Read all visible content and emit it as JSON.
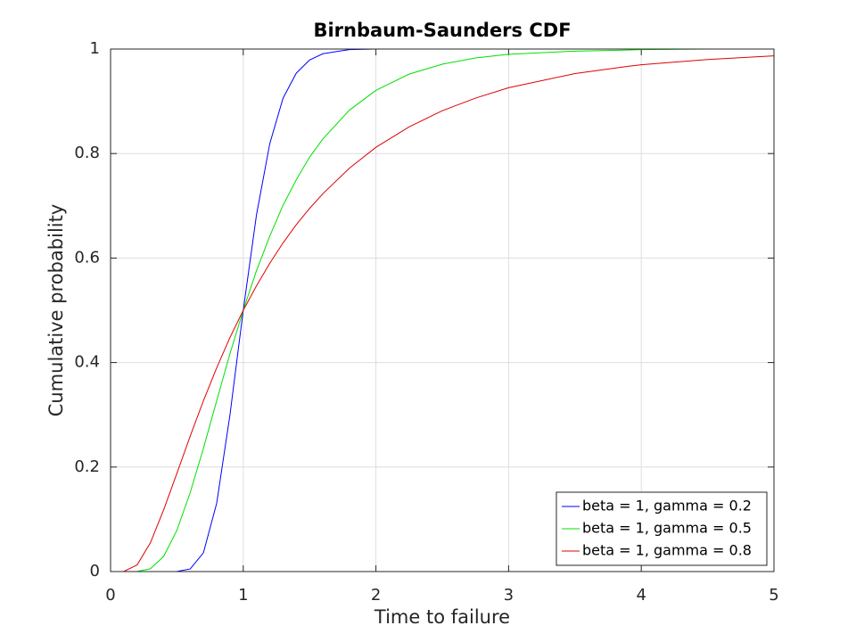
{
  "chart_data": {
    "type": "line",
    "title": "Birnbaum-Saunders CDF",
    "x_label": "Time to failure",
    "y_label": "Cumulative probability",
    "x": [
      0,
      0.1,
      0.2,
      0.3,
      0.4,
      0.5,
      0.6,
      0.7,
      0.8,
      0.9,
      1.0,
      1.1,
      1.2,
      1.3,
      1.4,
      1.5,
      1.6,
      1.8,
      2.0,
      2.25,
      2.5,
      2.75,
      3,
      3.5,
      3.9,
      4,
      4.5,
      5
    ],
    "series": [
      {
        "name": "beta = 1, gamma = 0.2",
        "color": "#0000ff",
        "values": [
          0,
          0,
          0,
          0,
          0,
          0.0002,
          0.005,
          0.036,
          0.131,
          0.3,
          0.5,
          0.683,
          0.819,
          0.906,
          0.954,
          0.979,
          0.991,
          0.999,
          1,
          1,
          1,
          1,
          1,
          1,
          1,
          null,
          null,
          null
        ]
      },
      {
        "name": "beta = 1, gamma = 0.5",
        "color": "#00e000",
        "values": [
          0,
          0,
          0.0002,
          0.0053,
          0.029,
          0.079,
          0.151,
          0.236,
          0.327,
          0.417,
          0.5,
          0.576,
          0.642,
          0.701,
          0.75,
          0.793,
          0.828,
          0.883,
          0.921,
          0.952,
          0.971,
          0.983,
          0.99,
          0.996,
          0.998,
          0.999,
          1,
          1
        ]
      },
      {
        "name": "beta = 1, gamma = 0.8",
        "color": "#e00000",
        "values": [
          0,
          0.0002,
          0.0127,
          0.055,
          0.118,
          0.188,
          0.259,
          0.327,
          0.39,
          0.448,
          0.5,
          0.547,
          0.59,
          0.629,
          0.664,
          0.695,
          0.723,
          0.772,
          0.812,
          0.851,
          0.882,
          0.906,
          0.926,
          0.953,
          0.967,
          0.97,
          0.98,
          0.987
        ]
      }
    ],
    "xlim": [
      0,
      5
    ],
    "xticks": [
      0,
      1,
      2,
      3,
      4,
      5
    ],
    "ylim": [
      0,
      1
    ],
    "yticks": [
      0,
      0.2,
      0.4,
      0.6,
      0.8,
      1
    ],
    "grid": true,
    "legend": "southeast"
  }
}
